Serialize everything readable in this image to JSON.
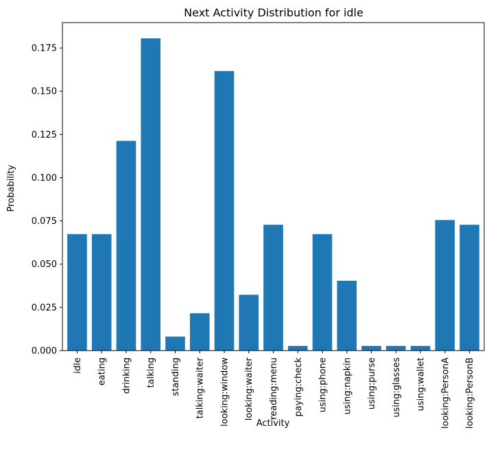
{
  "chart_data": {
    "type": "bar",
    "title": "Next Activity Distribution for idle",
    "xlabel": "Activity",
    "ylabel": "Probability",
    "categories": [
      "idle",
      "eating",
      "drinking",
      "talking",
      "standing",
      "talking:waiter",
      "looking:window",
      "looking:waiter",
      "reading:menu",
      "paying:check",
      "using:phone",
      "using:napkin",
      "using:purse",
      "using:glasses",
      "using:wallet",
      "looking:PersonA",
      "looking:PersonB"
    ],
    "values": [
      0.0674,
      0.0674,
      0.1213,
      0.1806,
      0.0081,
      0.0216,
      0.1617,
      0.0323,
      0.0728,
      0.0027,
      0.0674,
      0.0404,
      0.0027,
      0.0027,
      0.0027,
      0.0755,
      0.0728
    ],
    "ylim": [
      0,
      0.1897
    ],
    "yticks": [
      0.0,
      0.025,
      0.05,
      0.075,
      0.1,
      0.125,
      0.15,
      0.175
    ],
    "ytick_labels": [
      "0.000",
      "0.025",
      "0.050",
      "0.075",
      "0.100",
      "0.125",
      "0.150",
      "0.175"
    ],
    "bar_color": "#1f77b4",
    "grid": false,
    "legend": "none"
  }
}
